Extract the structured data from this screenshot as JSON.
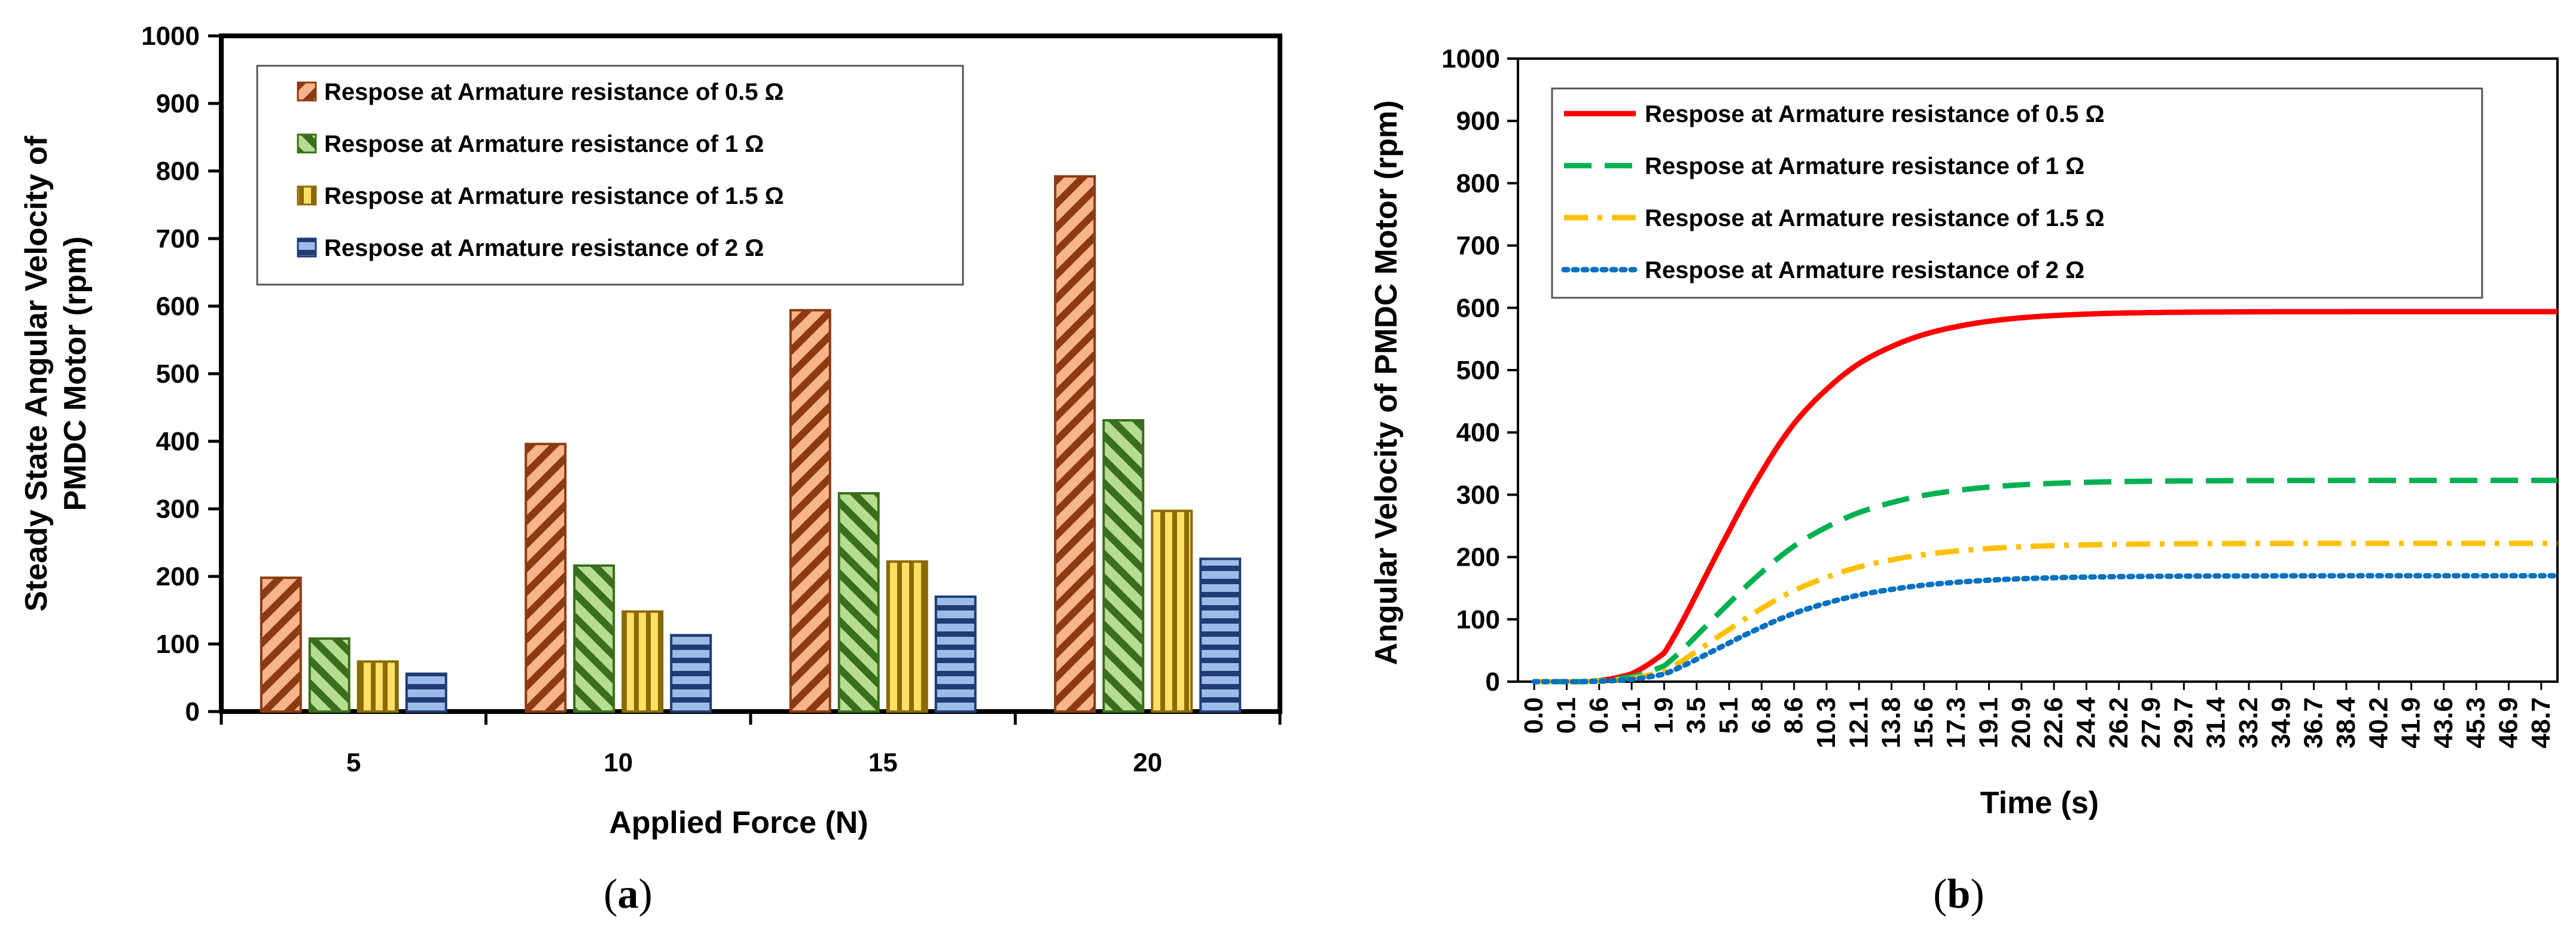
{
  "chart_data": [
    {
      "type": "bar",
      "panel_label_parts": [
        "(",
        "a",
        ")"
      ],
      "title": "",
      "xlabel": "Applied Force (N)",
      "ylabel_lines": [
        "Steady State Angular Velocity of",
        "PMDC Motor (rpm)"
      ],
      "ylim": [
        0,
        1000
      ],
      "yticks": [
        "0",
        "100",
        "200",
        "300",
        "400",
        "500",
        "600",
        "700",
        "800",
        "900",
        "1000"
      ],
      "categories": [
        "5",
        "10",
        "15",
        "20"
      ],
      "grid": false,
      "legend_position": "top-left",
      "series": [
        {
          "name": "Respose at Armature resistance of 0.5 Ω",
          "values": [
            198,
            396,
            594,
            792
          ],
          "fill": "#f8b58c",
          "stroke": "#8b3a12",
          "pattern": "diagonal"
        },
        {
          "name": "Respose at Armature resistance of 1 Ω",
          "values": [
            108,
            216,
            323,
            431
          ],
          "fill": "#b5dc8f",
          "stroke": "#3a6e1c",
          "pattern": "diagonal-reverse"
        },
        {
          "name": "Respose at Armature resistance of 1.5 Ω",
          "values": [
            74,
            148,
            222,
            297
          ],
          "fill": "#ffe066",
          "stroke": "#8a6a00",
          "pattern": "vertical"
        },
        {
          "name": "Respose at Armature resistance of 2 Ω",
          "values": [
            56,
            113,
            170,
            226
          ],
          "fill": "#9dbbe8",
          "stroke": "#1f3c74",
          "pattern": "horizontal"
        }
      ]
    },
    {
      "type": "line",
      "panel_label_parts": [
        "(",
        "b",
        ")"
      ],
      "title": "",
      "xlabel": "Time (s)",
      "ylabel": "Angular Velocity of PMDC Motor (rpm)",
      "ylim": [
        0,
        1000
      ],
      "xlim": [
        0,
        49.6
      ],
      "yticks": [
        "0",
        "100",
        "200",
        "300",
        "400",
        "500",
        "600",
        "700",
        "800",
        "900",
        "1000"
      ],
      "xtick_labels": [
        "0.0",
        "0.1",
        "0.6",
        "1.1",
        "1.9",
        "3.5",
        "5.1",
        "6.8",
        "8.6",
        "10.3",
        "12.1",
        "13.8",
        "15.6",
        "17.3",
        "19.1",
        "20.9",
        "22.6",
        "24.4",
        "26.2",
        "27.9",
        "29.7",
        "31.4",
        "33.2",
        "34.9",
        "36.7",
        "38.4",
        "40.2",
        "41.9",
        "43.6",
        "45.3",
        "46.9",
        "48.7"
      ],
      "grid": false,
      "legend_position": "top-left",
      "series": [
        {
          "name": "Respose at Armature resistance of 0.5 Ω",
          "color": "#ff0000",
          "dash": "solid",
          "steady_state": 594,
          "t_start": 0.35,
          "tau": 3.4
        },
        {
          "name": "Respose at Armature resistance of 1 Ω",
          "color": "#00b050",
          "dash": "dashed",
          "steady_state": 323,
          "t_start": 0.25,
          "tau": 3.6
        },
        {
          "name": "Respose at Armature resistance of 1.5 Ω",
          "color": "#ffc000",
          "dash": "dashdot",
          "steady_state": 222,
          "t_start": 0.25,
          "tau": 3.7
        },
        {
          "name": "Respose at Armature resistance of 2 Ω",
          "color": "#0070c0",
          "dash": "dotted",
          "steady_state": 170,
          "t_start": 0.25,
          "tau": 3.8
        }
      ]
    }
  ]
}
